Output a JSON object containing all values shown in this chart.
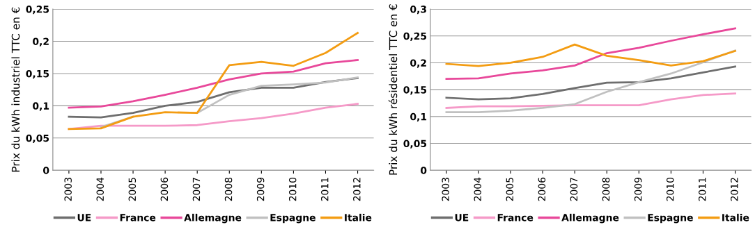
{
  "chart_data": [
    {
      "type": "line",
      "ylabel": "Prix du kWh industriel TTC en €",
      "categories": [
        "2003",
        "2004",
        "2005",
        "2006",
        "2007",
        "2008",
        "2009",
        "2010",
        "2011",
        "2012"
      ],
      "series": [
        {
          "name": "UE",
          "color": "#6e6e6e",
          "values": [
            0.083,
            0.082,
            0.089,
            0.1,
            0.106,
            0.121,
            0.128,
            0.128,
            0.137,
            0.143
          ]
        },
        {
          "name": "France",
          "color": "#f59ac8",
          "values": [
            0.064,
            0.069,
            0.069,
            0.069,
            0.07,
            0.076,
            0.081,
            0.088,
            0.097,
            0.103
          ]
        },
        {
          "name": "Allemagne",
          "color": "#e8489a",
          "values": [
            0.097,
            0.099,
            0.107,
            0.117,
            0.128,
            0.141,
            0.15,
            0.153,
            0.166,
            0.171
          ]
        },
        {
          "name": "Espagne",
          "color": "#c0c0c0",
          "values": [
            null,
            0.067,
            0.083,
            null,
            0.089,
            0.117,
            0.131,
            0.133,
            0.136,
            0.144
          ]
        },
        {
          "name": "Italie",
          "color": "#f39c12",
          "values": [
            0.064,
            0.065,
            0.083,
            0.09,
            0.089,
            0.163,
            0.168,
            0.162,
            0.182,
            0.213
          ]
        }
      ],
      "ylim": [
        0,
        0.25
      ],
      "yticks": [
        0,
        {
          "value": 0.05,
          "label": "0,05"
        },
        {
          "value": 0.1,
          "label": "0,1"
        },
        {
          "value": 0.15,
          "label": "0,15"
        },
        {
          "value": 0.2,
          "label": "0,2"
        },
        {
          "value": 0.25,
          "label": "0,25"
        }
      ],
      "grid": "y",
      "legend": "bottom",
      "marker": "none",
      "line_style": "solid"
    },
    {
      "type": "line",
      "ylabel": "Prix du kWh résidentiel TTC en €",
      "categories": [
        "2003",
        "2004",
        "2005",
        "2006",
        "2007",
        "2008",
        "2009",
        "2010",
        "2011",
        "2012"
      ],
      "series": [
        {
          "name": "UE",
          "color": "#6e6e6e",
          "values": [
            0.135,
            0.132,
            0.134,
            0.142,
            0.153,
            0.163,
            0.164,
            0.171,
            0.182,
            0.193
          ]
        },
        {
          "name": "France",
          "color": "#f59ac8",
          "values": [
            0.116,
            0.119,
            0.119,
            0.12,
            0.121,
            0.121,
            0.121,
            0.132,
            0.14,
            0.143
          ]
        },
        {
          "name": "Allemagne",
          "color": "#e8489a",
          "values": [
            0.17,
            0.171,
            0.18,
            0.186,
            0.195,
            0.218,
            0.228,
            0.241,
            0.253,
            0.264
          ]
        },
        {
          "name": "Espagne",
          "color": "#c0c0c0",
          "values": [
            0.108,
            0.108,
            0.111,
            0.116,
            0.123,
            0.146,
            0.164,
            0.18,
            0.201,
            0.223
          ]
        },
        {
          "name": "Italie",
          "color": "#f39c12",
          "values": [
            0.198,
            0.194,
            0.2,
            0.211,
            0.234,
            0.213,
            0.205,
            0.195,
            0.203,
            0.222
          ]
        }
      ],
      "ylim": [
        0,
        0.3
      ],
      "yticks": [
        0,
        {
          "value": 0.05,
          "label": "0,05"
        },
        {
          "value": 0.1,
          "label": "0,1"
        },
        {
          "value": 0.15,
          "label": "0,15"
        },
        {
          "value": 0.2,
          "label": "0,2"
        },
        {
          "value": 0.25,
          "label": "0,25"
        },
        {
          "value": 0.3,
          "label": "0,3"
        }
      ],
      "grid": "y",
      "legend": "bottom",
      "marker": "none",
      "line_style": "solid"
    }
  ]
}
